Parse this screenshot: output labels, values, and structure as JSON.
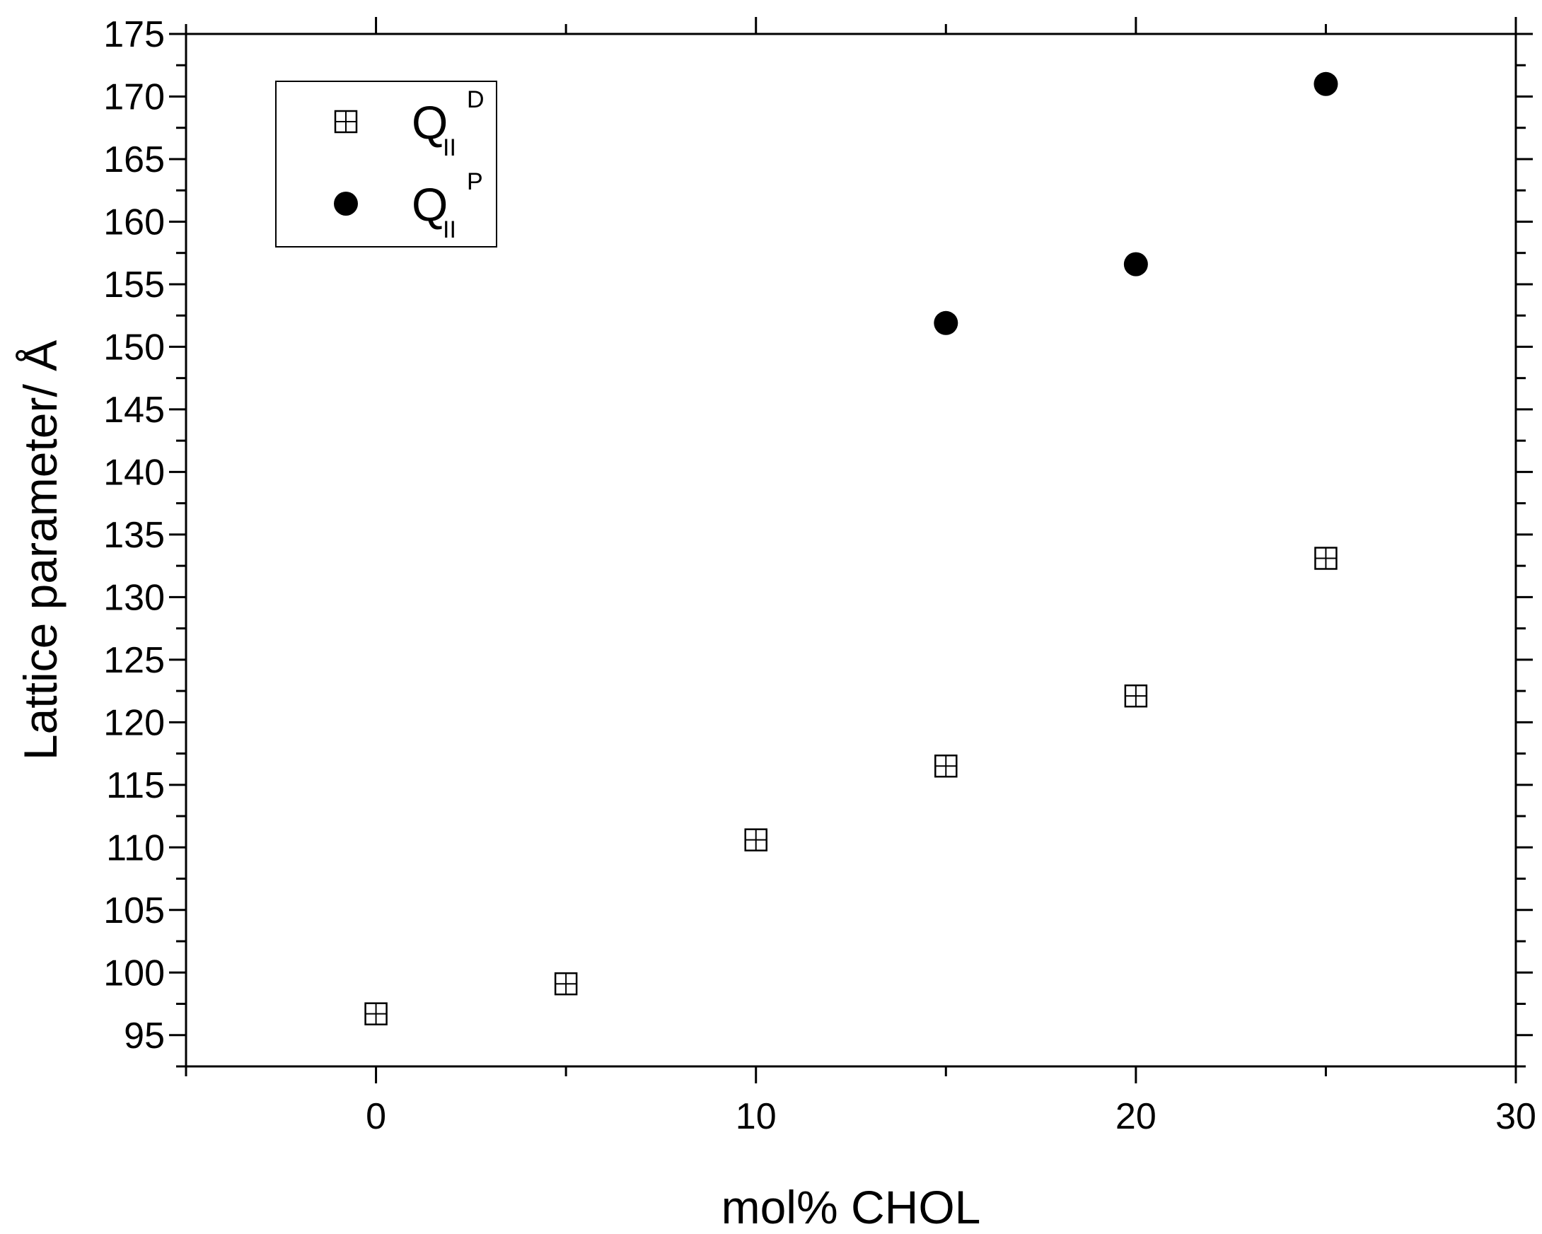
{
  "chart_data": {
    "type": "scatter",
    "title": "",
    "xlabel": "mol% CHOL",
    "ylabel": "Lattice parameter/ Å",
    "xlim": [
      -5,
      30
    ],
    "ylim": [
      92.5,
      175
    ],
    "x_ticks": [
      0,
      10,
      20,
      30
    ],
    "y_ticks": [
      95,
      100,
      105,
      110,
      115,
      120,
      125,
      130,
      135,
      140,
      145,
      150,
      155,
      160,
      165,
      170,
      175
    ],
    "grid": false,
    "legend_position": "top-left",
    "series": [
      {
        "name": "Q",
        "name_sub": "II",
        "name_sup": "D",
        "marker": "square-cross-open",
        "color": "#000000",
        "points": [
          {
            "x": 0,
            "y": 96.7
          },
          {
            "x": 5,
            "y": 99.1
          },
          {
            "x": 10,
            "y": 110.6
          },
          {
            "x": 15,
            "y": 116.5
          },
          {
            "x": 20,
            "y": 122.1
          },
          {
            "x": 25,
            "y": 133.1
          }
        ]
      },
      {
        "name": "Q",
        "name_sub": "II",
        "name_sup": "P",
        "marker": "circle-filled",
        "color": "#000000",
        "points": [
          {
            "x": 15,
            "y": 151.9
          },
          {
            "x": 20,
            "y": 156.6
          },
          {
            "x": 25,
            "y": 171.0
          }
        ]
      }
    ]
  }
}
